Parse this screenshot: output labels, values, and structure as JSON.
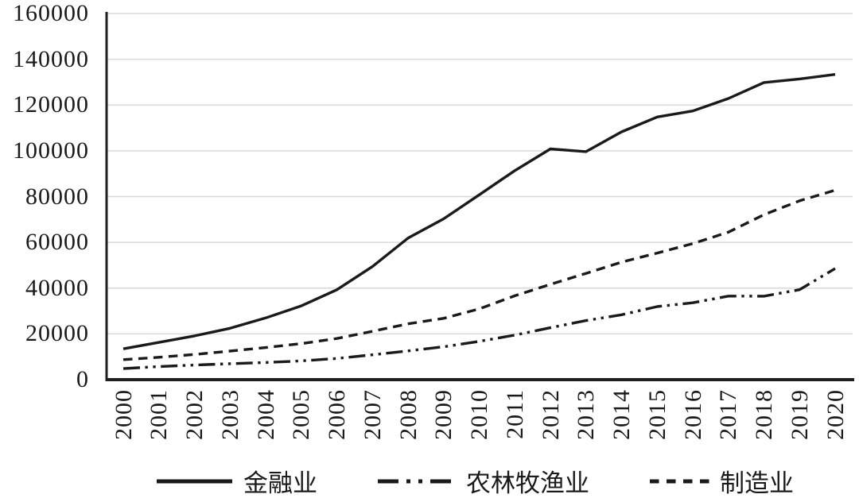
{
  "chart_data": {
    "type": "line",
    "title": "",
    "xlabel": "",
    "ylabel": "",
    "x": [
      "2000",
      "2001",
      "2002",
      "2003",
      "2004",
      "2005",
      "2006",
      "2007",
      "2008",
      "2009",
      "2010",
      "2011",
      "2012",
      "2013",
      "2014",
      "2015",
      "2016",
      "2017",
      "2018",
      "2019",
      "2020"
    ],
    "series": [
      {
        "key": "finance",
        "name": "金融业",
        "line_style": "solid",
        "values": [
          13478,
          16277,
          19135,
          22457,
          26982,
          32228,
          39280,
          49435,
          61841,
          70265,
          80772,
          91364,
          100833,
          99653,
          108273,
          114777,
          117418,
          122851,
          129837,
          131405,
          133390
        ]
      },
      {
        "key": "agriculture",
        "name": "农林牧渔业",
        "line_style": "dash-dot-dot",
        "values": [
          4832,
          5741,
          6398,
          6969,
          7497,
          8207,
          9269,
          10847,
          12560,
          14356,
          16717,
          19469,
          22687,
          25820,
          28356,
          31947,
          33612,
          36504,
          36466,
          39340,
          48540
        ]
      },
      {
        "key": "manufacturing",
        "name": "制造业",
        "line_style": "dashed",
        "values": [
          8750,
          9774,
          11001,
          12496,
          14033,
          15757,
          17966,
          21144,
          24404,
          26810,
          30916,
          36665,
          41650,
          46431,
          51369,
          55324,
          59470,
          64452,
          72088,
          78147,
          82783
        ]
      }
    ],
    "ylim": [
      0,
      160000
    ],
    "y_ticks": [
      0,
      20000,
      40000,
      60000,
      80000,
      100000,
      120000,
      140000,
      160000
    ],
    "grid": "horizontal-only",
    "legend_position": "bottom"
  },
  "colors": {
    "line": "#1a1a1a",
    "grid": "#d9d9d9",
    "axis": "#1f1f1f",
    "background": "#ffffff"
  }
}
